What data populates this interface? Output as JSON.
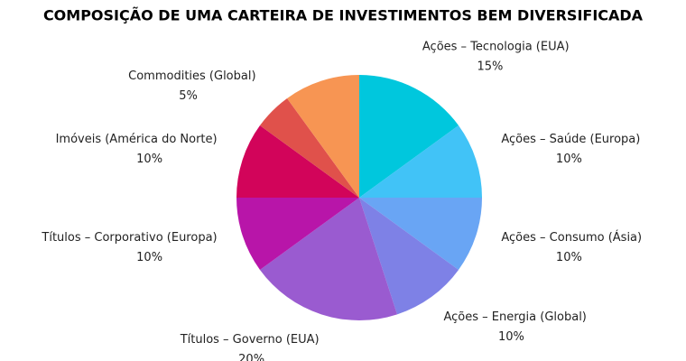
{
  "chart_data": {
    "type": "pie",
    "title": "COMPOSIÇÃO DE UMA CARTEIRA DE INVESTIMENTOS BEM DIVERSIFICADA",
    "categories": [
      "Ações – Tecnologia (EUA)",
      "Ações – Saúde (Europa)",
      "Ações – Consumo (Ásia)",
      "Ações – Energia (Global)",
      "Títulos – Governo (EUA)",
      "Títulos – Corporativo (Europa)",
      "Imóveis (América do Norte)",
      "Commodities (Global)",
      null
    ],
    "values": [
      15,
      10,
      10,
      10,
      20,
      10,
      10,
      5,
      10
    ],
    "value_labels": [
      "15%",
      "10%",
      "10%",
      "10%",
      "20%",
      "10%",
      "10%",
      "5%",
      null
    ],
    "colors": [
      "#00c7dd",
      "#41c3f7",
      "#69a5f4",
      "#7e81e6",
      "#9a5bd0",
      "#b815a9",
      "#d2045a",
      "#e0514b",
      "#f79553"
    ]
  }
}
